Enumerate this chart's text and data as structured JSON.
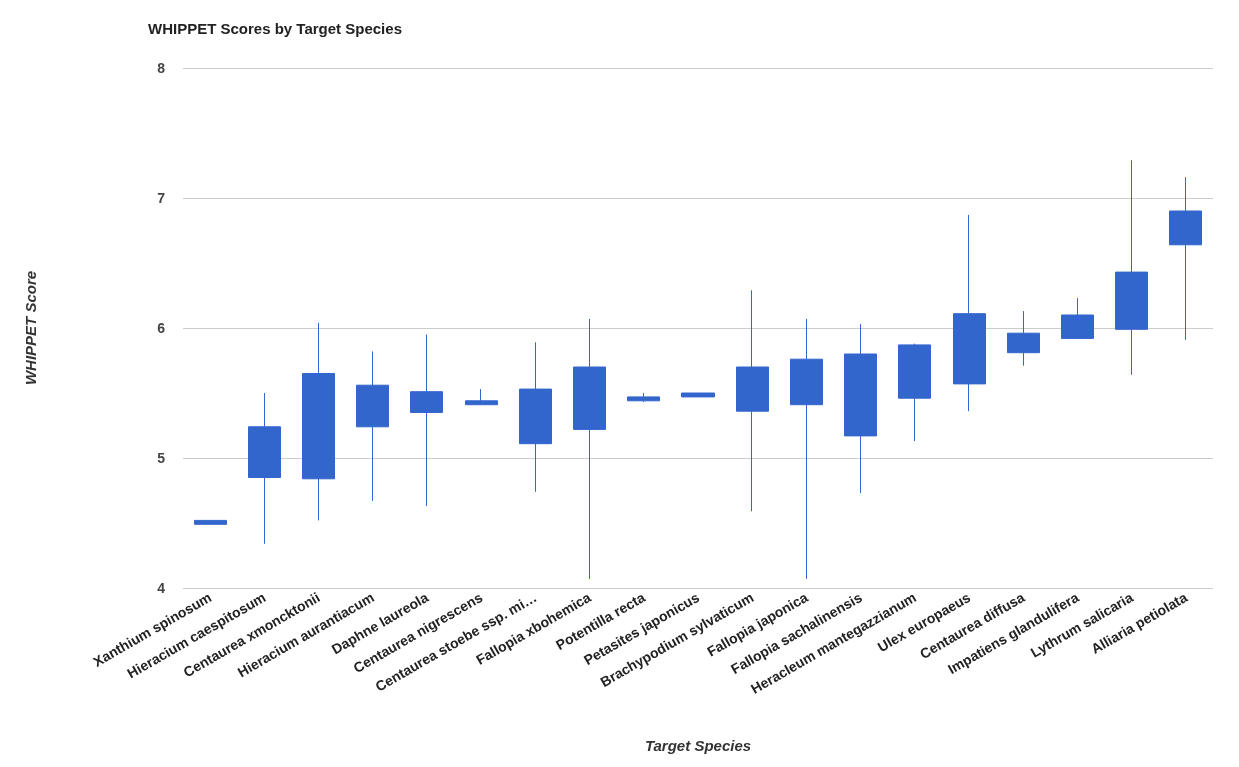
{
  "chart_data": {
    "type": "candlestick",
    "title": "WHIPPET Scores by Target Species",
    "xlabel": "Target Species",
    "ylabel": "WHIPPET Score",
    "categories": [
      "Xanthium spinosum",
      "Hieracium caespitosum",
      "Centaurea xmoncktonii",
      "Hieracium aurantiacum",
      "Daphne laureola",
      "Centaurea nigrescens",
      "Centaurea stoebe ssp. mi…",
      "Fallopia xbohemica",
      "Potentilla recta",
      "Petasites japonicus",
      "Brachypodium sylvaticum",
      "Fallopia japonica",
      "Fallopia sachalinensis",
      "Heracleum mantegazzianum",
      "Ulex europaeus",
      "Centaurea diffusa",
      "Impatiens glandulifera",
      "Lythrum salicaria",
      "Alliaria petiolata"
    ],
    "ohlc": [
      [
        4.49,
        4.52,
        4.49,
        4.52
      ],
      [
        4.85,
        5.5,
        4.34,
        5.24
      ],
      [
        4.84,
        6.04,
        4.52,
        5.65
      ],
      [
        5.24,
        5.82,
        4.67,
        5.56
      ],
      [
        5.35,
        5.95,
        4.63,
        5.51
      ],
      [
        5.41,
        5.53,
        5.41,
        5.44
      ],
      [
        5.11,
        5.89,
        4.74,
        5.53
      ],
      [
        5.22,
        6.07,
        4.07,
        5.7
      ],
      [
        5.44,
        5.5,
        5.43,
        5.47
      ],
      [
        5.47,
        5.5,
        5.47,
        5.5
      ],
      [
        5.36,
        6.29,
        4.59,
        5.7
      ],
      [
        5.41,
        6.07,
        4.07,
        5.76
      ],
      [
        5.17,
        6.03,
        4.73,
        5.8
      ],
      [
        5.46,
        5.88,
        5.13,
        5.87
      ],
      [
        5.57,
        6.87,
        5.36,
        6.11
      ],
      [
        5.81,
        6.13,
        5.71,
        5.96
      ],
      [
        5.92,
        6.23,
        5.92,
        6.1
      ],
      [
        5.99,
        7.29,
        5.64,
        6.43
      ],
      [
        6.64,
        7.16,
        5.91,
        6.9
      ]
    ],
    "color": "#3366cc",
    "ylim": [
      4,
      8
    ],
    "yticks": [
      4,
      5,
      6,
      7,
      8
    ],
    "grid": "y"
  }
}
